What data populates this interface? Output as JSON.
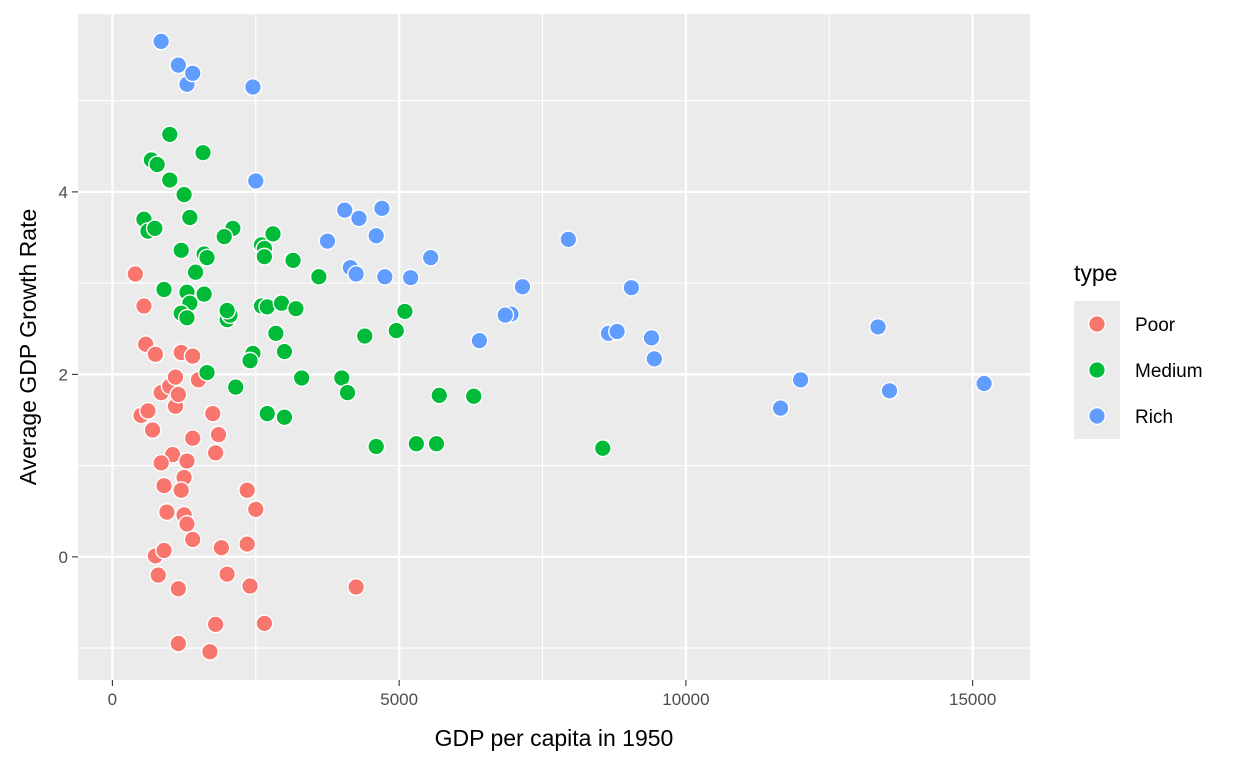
{
  "chart_data": {
    "type": "scatter",
    "xlabel": "GDP per capita in 1950",
    "ylabel": "Average GDP Growth Rate",
    "xlim": [
      -600,
      16000
    ],
    "ylim": [
      -1.35,
      5.95
    ],
    "xticks": [
      0,
      5000,
      10000,
      15000
    ],
    "xtick_labels": [
      "0",
      "5000",
      "10000",
      "15000"
    ],
    "yticks": [
      0,
      2,
      4
    ],
    "ytick_labels": [
      "0",
      "2",
      "4"
    ],
    "grid": true,
    "legend": {
      "title": "type",
      "position": "right"
    },
    "colors": {
      "Poor": "#f8766d",
      "Medium": "#00ba38",
      "Rich": "#619cff",
      "panel": "#ebebeb",
      "grid": "#ffffff"
    },
    "series": [
      {
        "name": "Poor",
        "points": [
          [
            400,
            3.1
          ],
          [
            550,
            2.75
          ],
          [
            580,
            2.33
          ],
          [
            750,
            2.22
          ],
          [
            850,
            1.8
          ],
          [
            1000,
            1.87
          ],
          [
            1100,
            1.97
          ],
          [
            1200,
            2.24
          ],
          [
            1400,
            2.2
          ],
          [
            1500,
            1.94
          ],
          [
            1100,
            1.65
          ],
          [
            1150,
            1.78
          ],
          [
            1750,
            1.57
          ],
          [
            1850,
            1.34
          ],
          [
            1400,
            1.3
          ],
          [
            1800,
            1.14
          ],
          [
            500,
            1.55
          ],
          [
            620,
            1.6
          ],
          [
            700,
            1.39
          ],
          [
            1050,
            1.12
          ],
          [
            850,
            1.03
          ],
          [
            1300,
            1.05
          ],
          [
            1250,
            0.87
          ],
          [
            900,
            0.78
          ],
          [
            1200,
            0.73
          ],
          [
            950,
            0.49
          ],
          [
            1250,
            0.46
          ],
          [
            1300,
            0.36
          ],
          [
            1400,
            0.19
          ],
          [
            750,
            0.01
          ],
          [
            900,
            0.07
          ],
          [
            800,
            -0.2
          ],
          [
            1150,
            -0.35
          ],
          [
            1900,
            0.1
          ],
          [
            2350,
            0.73
          ],
          [
            2500,
            0.52
          ],
          [
            2350,
            0.14
          ],
          [
            2000,
            -0.19
          ],
          [
            2400,
            -0.32
          ],
          [
            4250,
            -0.33
          ],
          [
            1800,
            -0.74
          ],
          [
            2650,
            -0.73
          ],
          [
            1150,
            -0.95
          ],
          [
            1700,
            -1.04
          ]
        ]
      },
      {
        "name": "Medium",
        "points": [
          [
            1000,
            4.63
          ],
          [
            680,
            4.35
          ],
          [
            780,
            4.3
          ],
          [
            1580,
            4.43
          ],
          [
            1000,
            4.13
          ],
          [
            1250,
            3.97
          ],
          [
            550,
            3.7
          ],
          [
            620,
            3.57
          ],
          [
            740,
            3.6
          ],
          [
            1350,
            3.72
          ],
          [
            2100,
            3.6
          ],
          [
            1950,
            3.51
          ],
          [
            1600,
            3.32
          ],
          [
            1650,
            3.28
          ],
          [
            1200,
            3.36
          ],
          [
            1450,
            3.12
          ],
          [
            900,
            2.93
          ],
          [
            1300,
            2.9
          ],
          [
            1600,
            2.88
          ],
          [
            1350,
            2.78
          ],
          [
            1200,
            2.67
          ],
          [
            1300,
            2.62
          ],
          [
            2000,
            2.6
          ],
          [
            2050,
            2.65
          ],
          [
            2000,
            2.7
          ],
          [
            2600,
            3.42
          ],
          [
            2650,
            3.38
          ],
          [
            2800,
            3.54
          ],
          [
            2650,
            3.29
          ],
          [
            3150,
            3.25
          ],
          [
            3600,
            3.07
          ],
          [
            2600,
            2.75
          ],
          [
            2700,
            2.74
          ],
          [
            2950,
            2.78
          ],
          [
            3200,
            2.72
          ],
          [
            2850,
            2.45
          ],
          [
            2450,
            2.23
          ],
          [
            2400,
            2.15
          ],
          [
            3000,
            2.25
          ],
          [
            1650,
            2.02
          ],
          [
            2150,
            1.86
          ],
          [
            3300,
            1.96
          ],
          [
            4000,
            1.96
          ],
          [
            4100,
            1.8
          ],
          [
            2700,
            1.57
          ],
          [
            3000,
            1.53
          ],
          [
            4400,
            2.42
          ],
          [
            4950,
            2.48
          ],
          [
            5100,
            2.69
          ],
          [
            5700,
            1.77
          ],
          [
            6300,
            1.76
          ],
          [
            4600,
            1.21
          ],
          [
            5300,
            1.24
          ],
          [
            5650,
            1.24
          ],
          [
            8550,
            1.19
          ]
        ]
      },
      {
        "name": "Rich",
        "points": [
          [
            850,
            5.65
          ],
          [
            1150,
            5.39
          ],
          [
            1300,
            5.18
          ],
          [
            1400,
            5.3
          ],
          [
            2450,
            5.15
          ],
          [
            2500,
            4.12
          ],
          [
            3750,
            3.46
          ],
          [
            4050,
            3.8
          ],
          [
            4300,
            3.71
          ],
          [
            4700,
            3.82
          ],
          [
            4600,
            3.52
          ],
          [
            4150,
            3.17
          ],
          [
            4250,
            3.1
          ],
          [
            4750,
            3.07
          ],
          [
            5200,
            3.06
          ],
          [
            5550,
            3.28
          ],
          [
            7950,
            3.48
          ],
          [
            7150,
            2.96
          ],
          [
            6950,
            2.66
          ],
          [
            6850,
            2.65
          ],
          [
            6400,
            2.37
          ],
          [
            8650,
            2.45
          ],
          [
            8800,
            2.47
          ],
          [
            9050,
            2.95
          ],
          [
            9400,
            2.4
          ],
          [
            9450,
            2.17
          ],
          [
            11650,
            1.63
          ],
          [
            12000,
            1.94
          ],
          [
            13350,
            2.52
          ],
          [
            13550,
            1.82
          ],
          [
            15200,
            1.9
          ]
        ]
      }
    ]
  }
}
